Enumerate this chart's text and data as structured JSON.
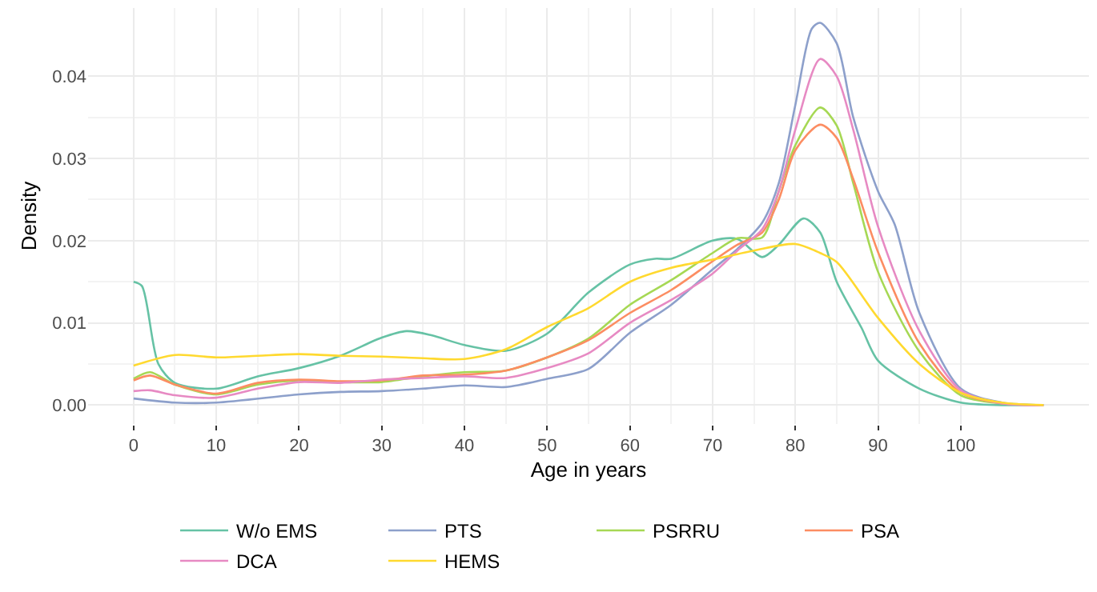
{
  "chart_data": {
    "type": "line",
    "xlabel": "Age in years",
    "ylabel": "Density",
    "xlim": [
      -5.5,
      115.5
    ],
    "ylim": [
      -0.0023,
      0.0483
    ],
    "xticks": [
      0,
      10,
      20,
      30,
      40,
      50,
      60,
      70,
      80,
      90,
      100
    ],
    "yticks": [
      {
        "value": 0,
        "label": "0.00"
      },
      {
        "value": 0.01,
        "label": "0.01"
      },
      {
        "value": 0.02,
        "label": "0.02"
      },
      {
        "value": 0.03,
        "label": "0.03"
      },
      {
        "value": 0.04,
        "label": "0.04"
      }
    ],
    "grid": true,
    "legend": "bottom",
    "marker": "none",
    "line_style": "solid",
    "series": [
      {
        "name": "W/o EMS",
        "color": "#66c2a5",
        "x": [
          0,
          1,
          3,
          5,
          10,
          15,
          20,
          25,
          30,
          33,
          36,
          40,
          45,
          50,
          55,
          60,
          63,
          65,
          70,
          73,
          76,
          78,
          81,
          83,
          85,
          88,
          90,
          95,
          100,
          105,
          110
        ],
        "values": [
          0.015,
          0.0145,
          0.005,
          0.0027,
          0.002,
          0.0035,
          0.0045,
          0.006,
          0.0082,
          0.009,
          0.0085,
          0.0073,
          0.0066,
          0.0087,
          0.0137,
          0.0171,
          0.0178,
          0.0178,
          0.02,
          0.0202,
          0.018,
          0.0195,
          0.0227,
          0.021,
          0.015,
          0.0094,
          0.0054,
          0.002,
          0.0003,
          0,
          0
        ]
      },
      {
        "name": "PTS",
        "color": "#8da0cb",
        "x": [
          0,
          5,
          10,
          20,
          25,
          30,
          35,
          40,
          45,
          50,
          55,
          60,
          65,
          70,
          73,
          76,
          78,
          80,
          82,
          83,
          85,
          87,
          90,
          92,
          95,
          100,
          105,
          110
        ],
        "values": [
          0.0008,
          0.0003,
          0.0003,
          0.0013,
          0.0016,
          0.0017,
          0.002,
          0.0024,
          0.0022,
          0.0032,
          0.0044,
          0.0088,
          0.0122,
          0.0165,
          0.019,
          0.0222,
          0.027,
          0.0365,
          0.0458,
          0.0465,
          0.044,
          0.035,
          0.026,
          0.022,
          0.0112,
          0.002,
          0.0003,
          0
        ]
      },
      {
        "name": "PSRRU",
        "color": "#a6d854",
        "x": [
          0,
          2,
          5,
          10,
          15,
          20,
          25,
          30,
          35,
          40,
          45,
          50,
          55,
          60,
          65,
          70,
          73,
          76,
          78,
          80,
          83,
          85,
          87,
          90,
          95,
          100,
          105,
          110
        ],
        "values": [
          0.0032,
          0.004,
          0.0025,
          0.0013,
          0.0025,
          0.003,
          0.0028,
          0.0028,
          0.0035,
          0.004,
          0.0042,
          0.0058,
          0.0081,
          0.0122,
          0.0152,
          0.0185,
          0.0203,
          0.0204,
          0.026,
          0.0316,
          0.0362,
          0.034,
          0.027,
          0.0162,
          0.0065,
          0.0012,
          0.0002,
          0
        ]
      },
      {
        "name": "PSA",
        "color": "#fc8d62",
        "x": [
          0,
          2,
          5,
          10,
          15,
          20,
          25,
          30,
          35,
          40,
          45,
          50,
          55,
          60,
          65,
          70,
          73,
          76,
          78,
          80,
          83,
          85,
          87,
          90,
          95,
          100,
          105,
          110
        ],
        "values": [
          0.003,
          0.0036,
          0.0025,
          0.0014,
          0.0027,
          0.0031,
          0.0029,
          0.003,
          0.0036,
          0.0037,
          0.0042,
          0.0058,
          0.0079,
          0.0112,
          0.014,
          0.0175,
          0.0195,
          0.021,
          0.025,
          0.031,
          0.0341,
          0.0325,
          0.0275,
          0.0186,
          0.0075,
          0.0015,
          0.0002,
          0
        ]
      },
      {
        "name": "DCA",
        "color": "#e78ac3",
        "x": [
          0,
          2,
          5,
          10,
          15,
          20,
          25,
          30,
          35,
          40,
          45,
          50,
          55,
          60,
          65,
          70,
          73,
          76,
          78,
          80,
          83,
          85,
          87,
          90,
          95,
          100,
          105,
          110
        ],
        "values": [
          0.0017,
          0.0018,
          0.0012,
          0.0009,
          0.002,
          0.0028,
          0.0027,
          0.0031,
          0.0033,
          0.0035,
          0.0033,
          0.0045,
          0.0063,
          0.01,
          0.0128,
          0.016,
          0.0188,
          0.0214,
          0.026,
          0.0335,
          0.0421,
          0.04,
          0.0335,
          0.0217,
          0.009,
          0.0018,
          0.0002,
          0
        ]
      },
      {
        "name": "HEMS",
        "color": "#ffd92f",
        "x": [
          0,
          5,
          10,
          15,
          20,
          25,
          30,
          35,
          40,
          45,
          50,
          55,
          60,
          65,
          70,
          75,
          80,
          83,
          85,
          90,
          95,
          100,
          105,
          110
        ],
        "values": [
          0.0048,
          0.0061,
          0.0058,
          0.006,
          0.0062,
          0.006,
          0.0059,
          0.0057,
          0.0056,
          0.0068,
          0.0095,
          0.0118,
          0.015,
          0.0167,
          0.0177,
          0.0188,
          0.0196,
          0.0185,
          0.0174,
          0.0106,
          0.005,
          0.0015,
          0.0003,
          0
        ]
      }
    ]
  }
}
